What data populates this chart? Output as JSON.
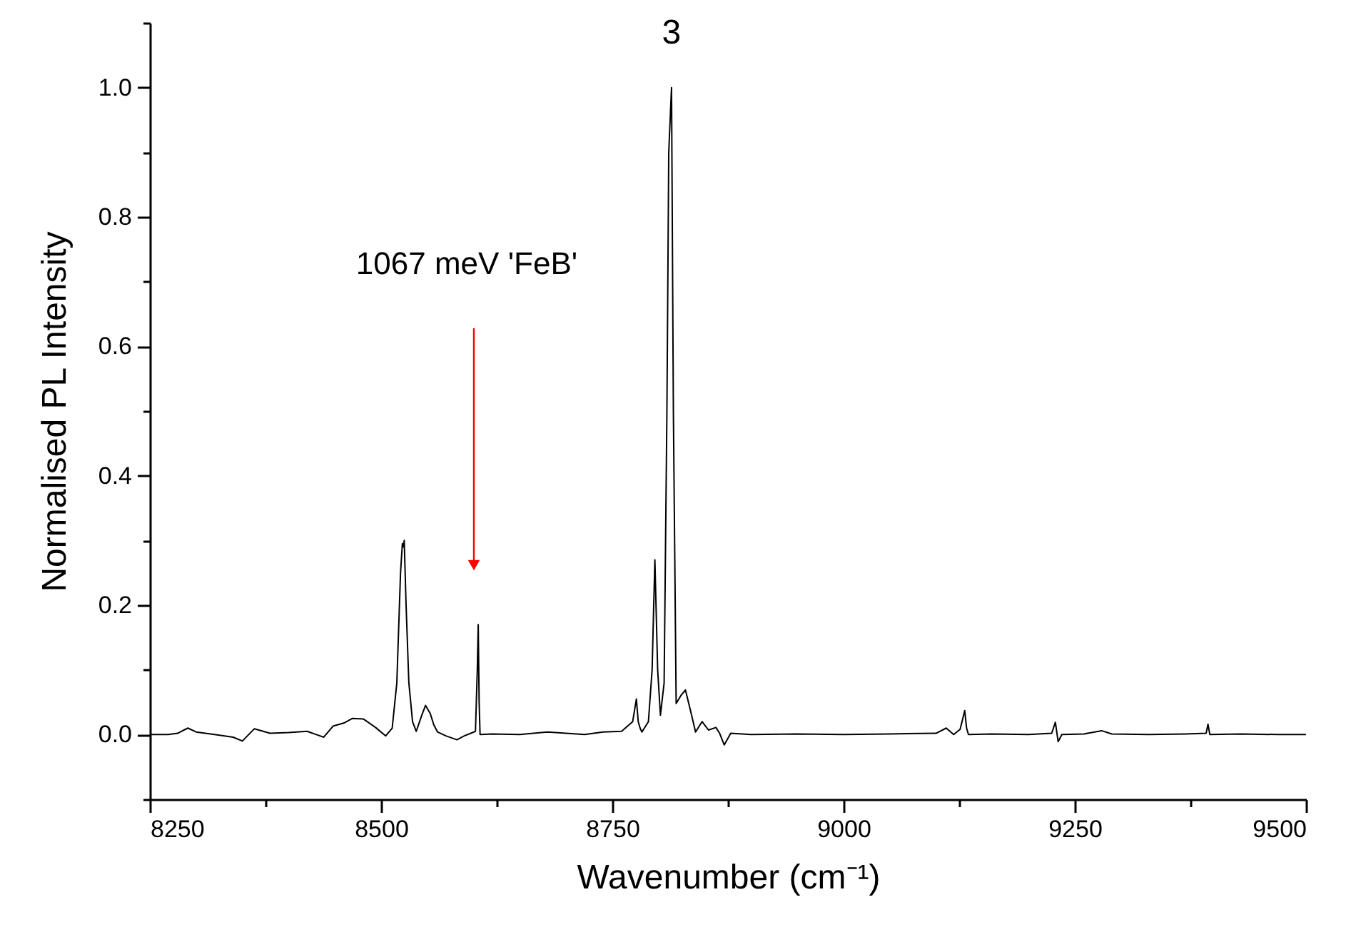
{
  "chart_data": {
    "type": "line",
    "xlabel": "Wavenumber (cm⁻¹)",
    "ylabel": "Normalised PL Intensity",
    "annotations": [
      {
        "text": "3",
        "x": 8814,
        "y": 1.0
      },
      "1067 meV 'FeB'"
    ],
    "x": [
      8250,
      8270,
      8280,
      8291,
      8300,
      8320,
      8340,
      8350,
      8363,
      8380,
      8400,
      8420,
      8430,
      8438,
      8448,
      8460,
      8469,
      8481,
      8494,
      8505,
      8512,
      8517,
      8521,
      8523,
      8524,
      8525,
      8527,
      8530,
      8534,
      8538,
      8544,
      8548,
      8553,
      8557,
      8561,
      8570,
      8582,
      8590,
      8597,
      8602,
      8604,
      8605,
      8606,
      8607,
      8620,
      8650,
      8680,
      8700,
      8720,
      8740,
      8760,
      8772,
      8776,
      8778,
      8780,
      8782,
      8789,
      8793,
      8796,
      8799,
      8802,
      8806,
      8809,
      8811,
      8814,
      8816,
      8819,
      8824,
      8829,
      8834,
      8840,
      8847,
      8854,
      8862,
      8866,
      8871,
      8878,
      8900,
      8950,
      9000,
      9050,
      9100,
      9111,
      9119,
      9126,
      9131,
      9133,
      9135,
      9160,
      9200,
      9225,
      9229,
      9232,
      9236,
      9260,
      9279,
      9290,
      9330,
      9370,
      9392,
      9394,
      9396,
      9430,
      9470,
      9500
    ],
    "series": [
      {
        "color": "#000000",
        "values": [
          0.0,
          0.0,
          0.002,
          0.01,
          0.004,
          0.0,
          -0.004,
          -0.01,
          0.009,
          0.002,
          0.003,
          0.005,
          0.0,
          -0.004,
          0.013,
          0.018,
          0.025,
          0.024,
          0.011,
          -0.002,
          0.01,
          0.08,
          0.25,
          0.295,
          0.29,
          0.3,
          0.2,
          0.08,
          0.02,
          0.005,
          0.03,
          0.045,
          0.033,
          0.015,
          0.004,
          -0.002,
          -0.008,
          -0.002,
          0.002,
          0.005,
          0.1,
          0.17,
          0.05,
          0.0,
          0.001,
          0.0,
          0.004,
          0.002,
          0.0,
          0.004,
          0.005,
          0.02,
          0.055,
          0.02,
          0.01,
          0.004,
          0.02,
          0.1,
          0.27,
          0.1,
          0.03,
          0.08,
          0.5,
          0.9,
          1.0,
          0.5,
          0.048,
          0.06,
          0.069,
          0.04,
          0.004,
          0.02,
          0.007,
          0.011,
          0.002,
          -0.016,
          0.002,
          0.0,
          0.001,
          0.0,
          0.001,
          0.002,
          0.01,
          0.0,
          0.008,
          0.037,
          0.01,
          0.0,
          0.001,
          0.0,
          0.002,
          0.019,
          -0.011,
          0.0,
          0.001,
          0.006,
          0.001,
          0.0,
          0.001,
          0.002,
          0.016,
          0.0,
          0.001,
          0.0,
          0.0
        ]
      }
    ],
    "xlim": [
      8250,
      9500
    ],
    "xticks": [
      8250,
      {
        "value": 8375,
        "label": null
      },
      8500,
      {
        "value": 8625,
        "label": null
      },
      8750,
      {
        "value": 8875,
        "label": null
      },
      9000,
      {
        "value": 9125,
        "label": null
      },
      9250,
      {
        "value": 9375,
        "label": null
      },
      9500
    ],
    "ylim": [
      -0.1,
      1.1
    ],
    "yticks": [
      {
        "value": -0.1,
        "label": null
      },
      {
        "value": 0,
        "label": "0.0"
      },
      {
        "value": 0.1,
        "label": null
      },
      {
        "value": 0.2,
        "label": "0.2"
      },
      {
        "value": 0.3,
        "label": null
      },
      {
        "value": 0.4,
        "label": "0.4"
      },
      {
        "value": 0.5,
        "label": null
      },
      {
        "value": 0.6,
        "label": "0.6"
      },
      {
        "value": 0.7,
        "label": null
      },
      {
        "value": 0.8,
        "label": "0.8"
      },
      {
        "value": 0.9,
        "label": null
      },
      {
        "value": 1,
        "label": "1.0"
      },
      {
        "value": 1.1,
        "label": null
      }
    ],
    "grid": false,
    "marker": "none",
    "line_style": "solid"
  }
}
